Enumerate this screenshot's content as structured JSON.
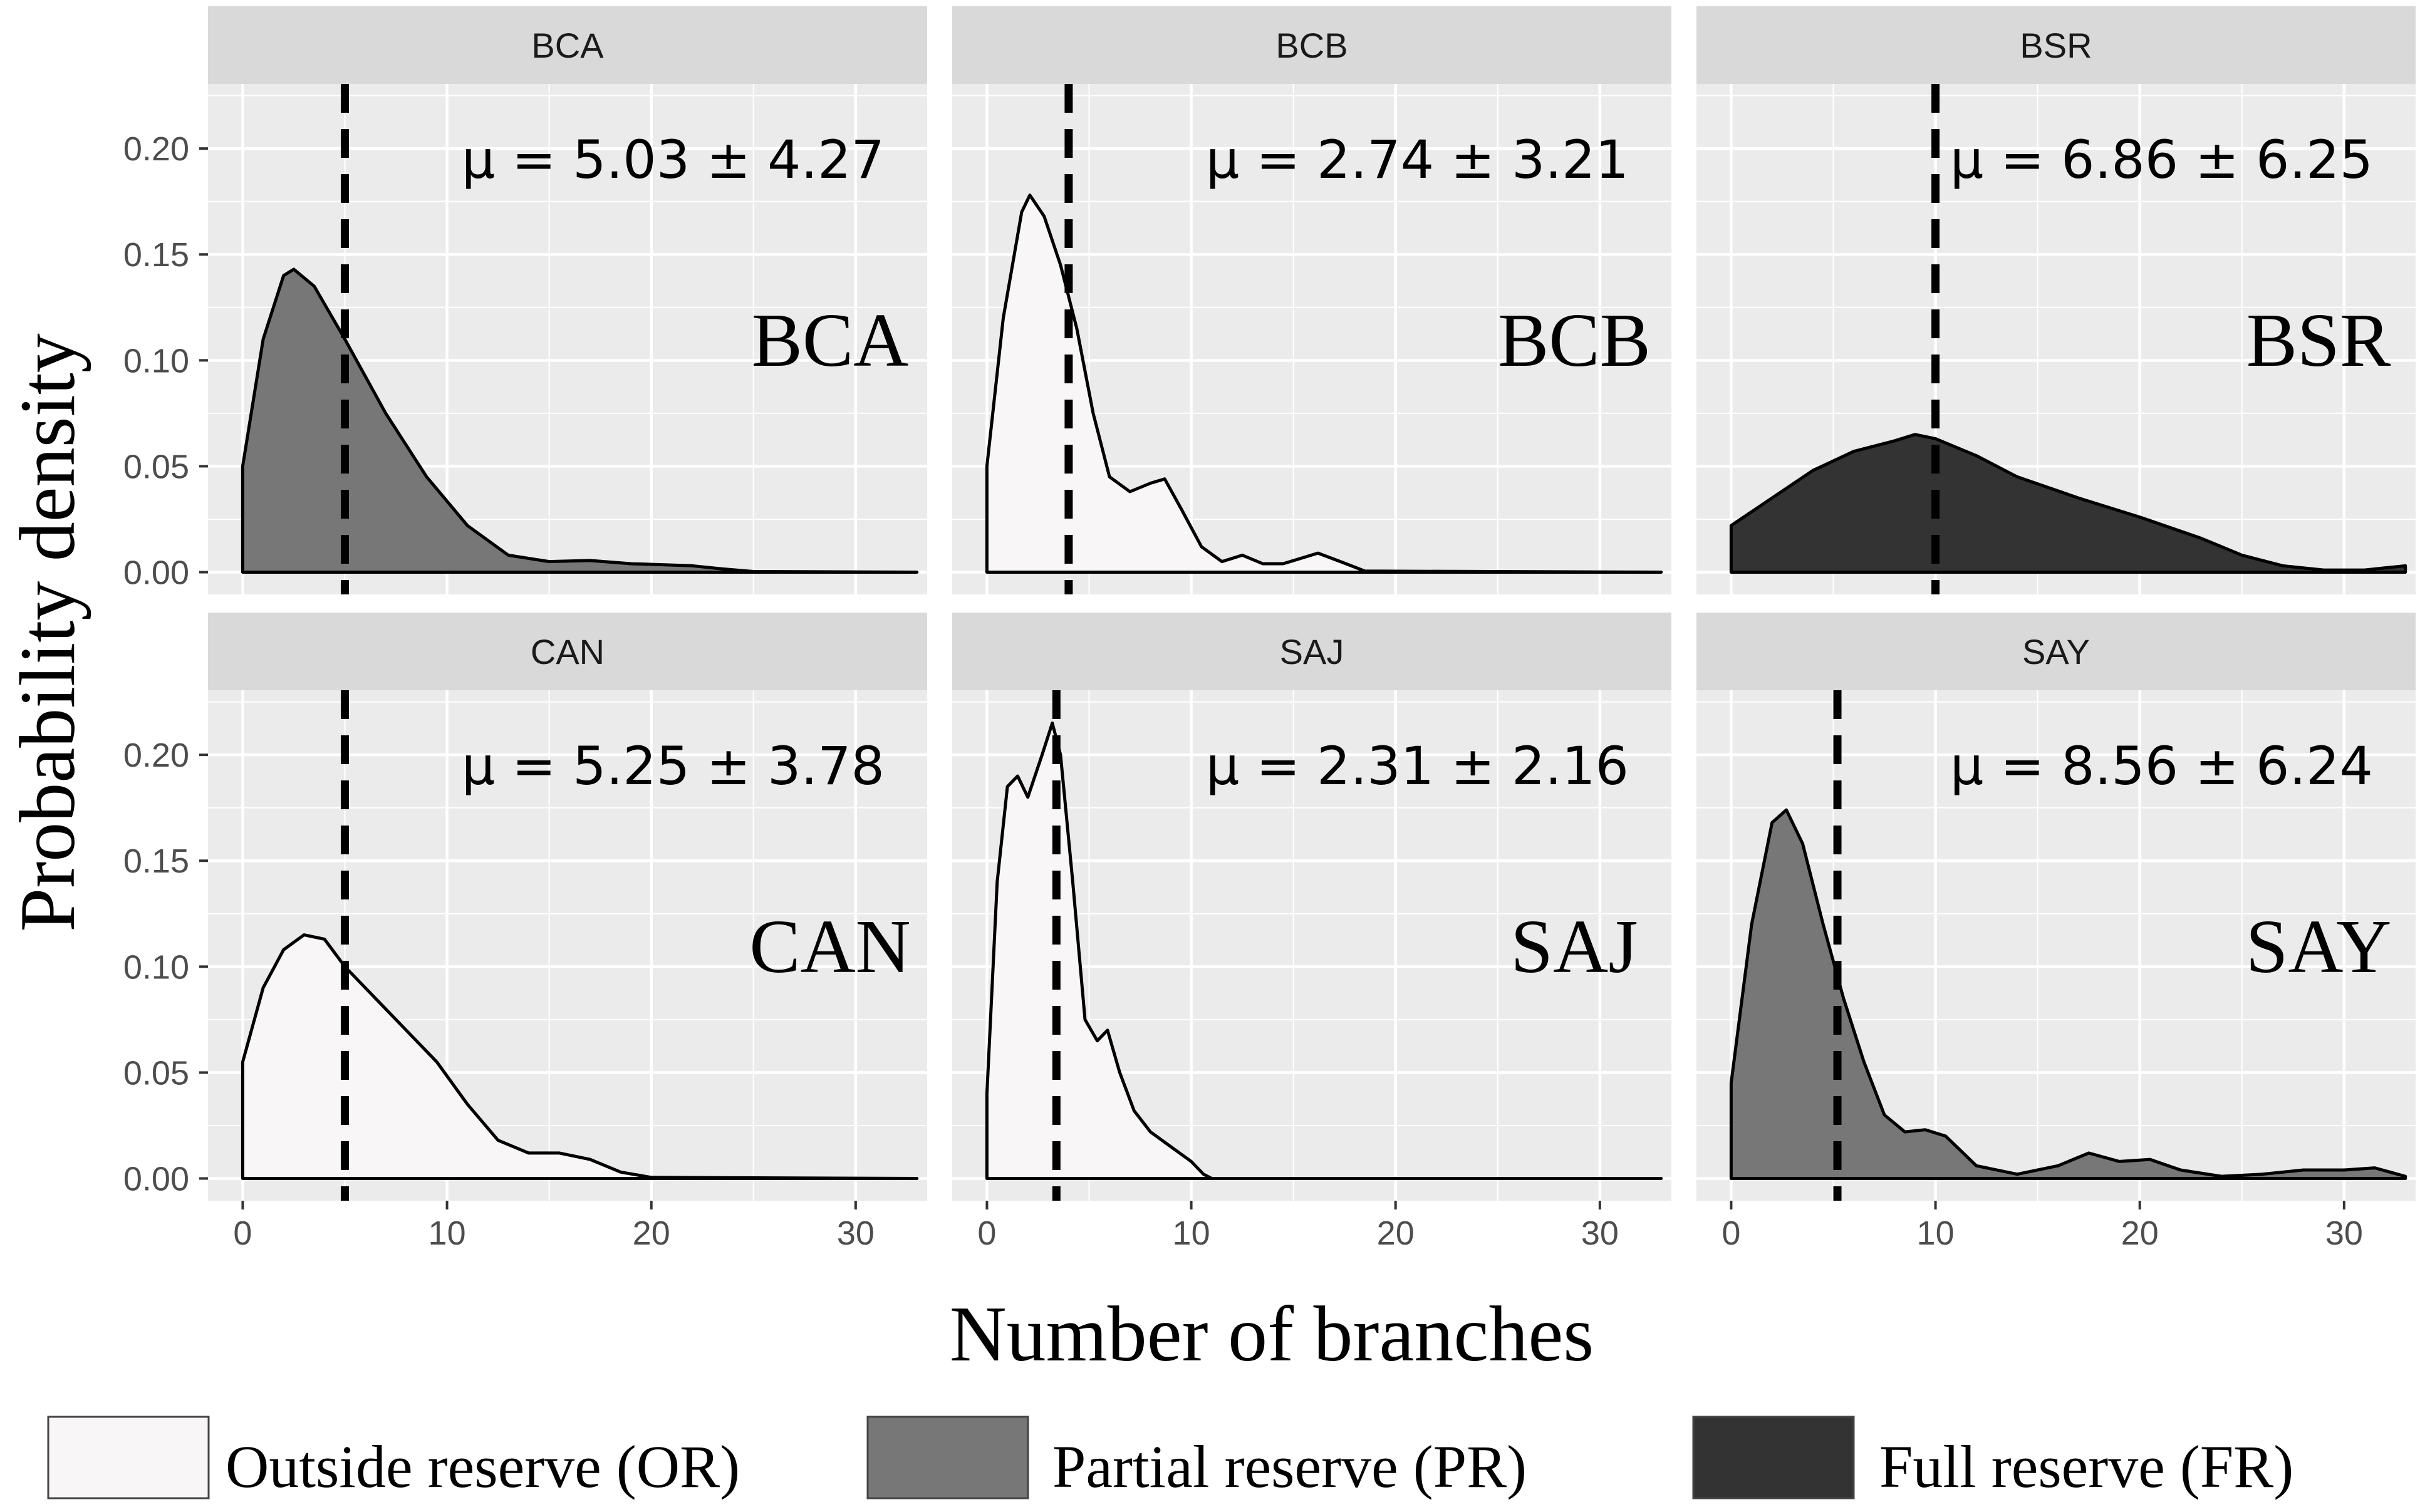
{
  "chart_data": {
    "type": "area",
    "xlabel": "Number of branches",
    "ylabel": "Probability density",
    "xlim": [
      -1.7,
      33.5
    ],
    "ylim": [
      -0.0105,
      0.2305
    ],
    "xticks": [
      "0",
      "10",
      "20",
      "30"
    ],
    "yticks": [
      "0.00",
      "0.05",
      "0.10",
      "0.15",
      "0.20"
    ],
    "xtick_values": [
      0,
      10,
      20,
      30
    ],
    "ytick_values": [
      0,
      0.05,
      0.1,
      0.15,
      0.2
    ],
    "grid": true,
    "legend_position": "bottom",
    "colors": {
      "OR": "#f8f6f6",
      "PR": "#777777",
      "FR": "#333333",
      "panel_bg": "#ebebeb",
      "strip_bg": "#d9d9d9",
      "grid": "#ffffff"
    },
    "legend": [
      {
        "key": "OR",
        "label": "Outside reserve (OR)"
      },
      {
        "key": "PR",
        "label": "Partial reserve (PR)"
      },
      {
        "key": "FR",
        "label": "Full reserve (FR)"
      }
    ],
    "panels": [
      {
        "strip": "BCA",
        "site_label": "BCA",
        "mu_label": "μ = 5.03 ± 4.27",
        "reserve": "PR",
        "mean_line": 5,
        "density": [
          [
            0,
            0.05
          ],
          [
            1,
            0.11
          ],
          [
            2,
            0.14
          ],
          [
            2.5,
            0.143
          ],
          [
            3.5,
            0.135
          ],
          [
            5,
            0.11
          ],
          [
            7,
            0.075
          ],
          [
            9,
            0.045
          ],
          [
            11,
            0.022
          ],
          [
            13,
            0.008
          ],
          [
            15,
            0.005
          ],
          [
            17,
            0.0055
          ],
          [
            19,
            0.004
          ],
          [
            22,
            0.003
          ],
          [
            23.5,
            0.0015
          ],
          [
            25,
            0.0003
          ],
          [
            33,
            0
          ]
        ]
      },
      {
        "strip": "BCB",
        "site_label": "BCB",
        "mu_label": "μ = 2.74 ± 3.21",
        "reserve": "OR",
        "mean_line": 4,
        "density": [
          [
            0,
            0.05
          ],
          [
            0.8,
            0.12
          ],
          [
            1.7,
            0.17
          ],
          [
            2.1,
            0.178
          ],
          [
            2.8,
            0.168
          ],
          [
            3.6,
            0.145
          ],
          [
            4.4,
            0.115
          ],
          [
            5.2,
            0.075
          ],
          [
            6,
            0.045
          ],
          [
            7,
            0.038
          ],
          [
            8,
            0.042
          ],
          [
            8.7,
            0.044
          ],
          [
            9.5,
            0.03
          ],
          [
            10.5,
            0.012
          ],
          [
            11.5,
            0.005
          ],
          [
            12.5,
            0.008
          ],
          [
            13.5,
            0.004
          ],
          [
            14.5,
            0.004
          ],
          [
            16.2,
            0.009
          ],
          [
            17.3,
            0.005
          ],
          [
            18.5,
            0.0005
          ],
          [
            33,
            0
          ]
        ]
      },
      {
        "strip": "BSR",
        "site_label": "BSR",
        "mu_label": "μ  = 6.86 ± 6.25",
        "reserve": "FR",
        "mean_line": 10,
        "density": [
          [
            0,
            0.022
          ],
          [
            2,
            0.035
          ],
          [
            4,
            0.048
          ],
          [
            6,
            0.057
          ],
          [
            8,
            0.062
          ],
          [
            9,
            0.065
          ],
          [
            10,
            0.063
          ],
          [
            12,
            0.055
          ],
          [
            14,
            0.045
          ],
          [
            17,
            0.035
          ],
          [
            20,
            0.026
          ],
          [
            23,
            0.016
          ],
          [
            25,
            0.008
          ],
          [
            27,
            0.003
          ],
          [
            29,
            0.001
          ],
          [
            31,
            0.001
          ],
          [
            33,
            0.003
          ]
        ]
      },
      {
        "strip": "CAN",
        "site_label": "CAN",
        "mu_label": "μ = 5.25 ± 3.78",
        "reserve": "OR",
        "mean_line": 5,
        "density": [
          [
            0,
            0.055
          ],
          [
            1,
            0.09
          ],
          [
            2,
            0.108
          ],
          [
            3,
            0.115
          ],
          [
            4,
            0.113
          ],
          [
            5,
            0.1
          ],
          [
            6.5,
            0.085
          ],
          [
            8,
            0.07
          ],
          [
            9.5,
            0.055
          ],
          [
            11,
            0.035
          ],
          [
            12.5,
            0.018
          ],
          [
            14,
            0.012
          ],
          [
            15.5,
            0.012
          ],
          [
            17,
            0.009
          ],
          [
            18.5,
            0.003
          ],
          [
            20,
            0.0005
          ],
          [
            33,
            0
          ]
        ]
      },
      {
        "strip": "SAJ",
        "site_label": "SAJ",
        "mu_label": "μ  = 2.31 ± 2.16",
        "reserve": "OR",
        "mean_line": 3.4,
        "density": [
          [
            0,
            0.04
          ],
          [
            0.5,
            0.14
          ],
          [
            1,
            0.185
          ],
          [
            1.5,
            0.19
          ],
          [
            2,
            0.18
          ],
          [
            2.7,
            0.2
          ],
          [
            3.2,
            0.215
          ],
          [
            3.6,
            0.2
          ],
          [
            4.2,
            0.14
          ],
          [
            4.8,
            0.075
          ],
          [
            5.4,
            0.065
          ],
          [
            5.9,
            0.07
          ],
          [
            6.5,
            0.05
          ],
          [
            7.2,
            0.032
          ],
          [
            8,
            0.022
          ],
          [
            9,
            0.015
          ],
          [
            10,
            0.008
          ],
          [
            10.6,
            0.002
          ],
          [
            11,
            0
          ],
          [
            33,
            0
          ]
        ]
      },
      {
        "strip": "SAY",
        "site_label": "SAY",
        "mu_label": "μ = 8.56 ± 6.24",
        "reserve": "PR",
        "mean_line": 5.2,
        "density": [
          [
            0,
            0.045
          ],
          [
            1,
            0.12
          ],
          [
            2,
            0.168
          ],
          [
            2.7,
            0.174
          ],
          [
            3.5,
            0.158
          ],
          [
            4.5,
            0.12
          ],
          [
            5.5,
            0.085
          ],
          [
            6.5,
            0.055
          ],
          [
            7.5,
            0.03
          ],
          [
            8.5,
            0.022
          ],
          [
            9.5,
            0.023
          ],
          [
            10.5,
            0.02
          ],
          [
            12,
            0.006
          ],
          [
            14,
            0.002
          ],
          [
            16,
            0.006
          ],
          [
            17.5,
            0.012
          ],
          [
            19,
            0.008
          ],
          [
            20.5,
            0.009
          ],
          [
            22,
            0.004
          ],
          [
            24,
            0.001
          ],
          [
            26,
            0.002
          ],
          [
            28,
            0.004
          ],
          [
            30,
            0.004
          ],
          [
            31.5,
            0.005
          ],
          [
            33,
            0.001
          ]
        ]
      }
    ]
  }
}
